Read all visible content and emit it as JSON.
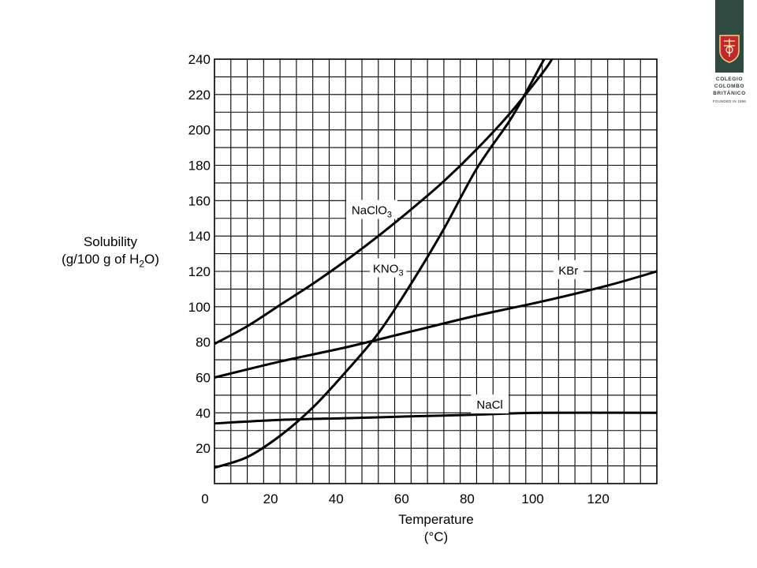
{
  "chart_data": {
    "type": "line",
    "xlabel": "Temperature",
    "xunit": "(°C)",
    "ylabel_line1": "Solubility",
    "ylabel_line2_pre": "(g/100 g of H",
    "ylabel_line2_sub": "2",
    "ylabel_line2_post": "O)",
    "xlim": [
      0,
      135
    ],
    "ylim": [
      0,
      240
    ],
    "x_ticks": [
      0,
      20,
      40,
      60,
      80,
      100,
      120
    ],
    "y_ticks": [
      20,
      40,
      60,
      80,
      100,
      120,
      140,
      160,
      180,
      200,
      220,
      240
    ],
    "x_grid_step": 5,
    "y_grid_step": 10,
    "grid": true,
    "series": [
      {
        "name": "NaClO3",
        "label_main": "NaClO",
        "label_sub": "3",
        "points": [
          [
            0,
            79
          ],
          [
            10,
            89
          ],
          [
            20,
            101
          ],
          [
            30,
            113
          ],
          [
            40,
            126
          ],
          [
            50,
            140
          ],
          [
            60,
            155
          ],
          [
            70,
            171
          ],
          [
            80,
            189
          ],
          [
            90,
            209
          ],
          [
            100,
            232
          ],
          [
            103,
            240
          ]
        ]
      },
      {
        "name": "KNO3",
        "label_main": "KNO",
        "label_sub": "3",
        "points": [
          [
            0,
            9
          ],
          [
            10,
            15
          ],
          [
            20,
            27
          ],
          [
            30,
            43
          ],
          [
            40,
            63
          ],
          [
            50,
            85
          ],
          [
            60,
            113
          ],
          [
            70,
            144
          ],
          [
            80,
            178
          ],
          [
            90,
            205
          ],
          [
            95,
            221
          ],
          [
            100,
            238
          ],
          [
            101,
            241
          ]
        ]
      },
      {
        "name": "KBr",
        "label_main": "KBr",
        "label_sub": "",
        "points": [
          [
            0,
            60
          ],
          [
            20,
            69
          ],
          [
            40,
            77
          ],
          [
            60,
            86
          ],
          [
            80,
            95
          ],
          [
            100,
            103
          ],
          [
            120,
            112
          ],
          [
            135,
            120
          ]
        ]
      },
      {
        "name": "NaCl",
        "label_main": "NaCl",
        "label_sub": "",
        "points": [
          [
            0,
            34
          ],
          [
            20,
            36
          ],
          [
            40,
            37
          ],
          [
            60,
            38
          ],
          [
            80,
            39
          ],
          [
            100,
            40
          ],
          [
            135,
            40
          ]
        ]
      }
    ],
    "labels": [
      {
        "series": "NaClO3",
        "x": 48,
        "y": 155
      },
      {
        "series": "KNO3",
        "x": 53,
        "y": 122
      },
      {
        "series": "KBr",
        "x": 108,
        "y": 121
      },
      {
        "series": "NaCl",
        "x": 84,
        "y": 45
      }
    ]
  },
  "logo": {
    "line1": "COLEGIO",
    "line2": "COLOMBO",
    "line3": "BRITÁNICO",
    "line4": "FOUNDED IN 1956",
    "bar_color": "#2f4a40",
    "shield_color": "#c0282e"
  }
}
